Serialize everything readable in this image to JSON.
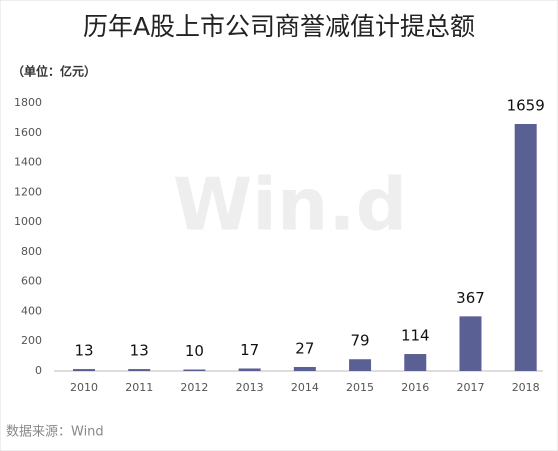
{
  "chart_data": {
    "type": "bar",
    "title": "历年A股上市公司商誉减值计提总额",
    "unit": "（单位：亿元）",
    "categories": [
      "2010",
      "2011",
      "2012",
      "2013",
      "2014",
      "2015",
      "2016",
      "2017",
      "2018"
    ],
    "values": [
      13,
      13,
      10,
      17,
      27,
      79,
      114,
      367,
      1659
    ],
    "color": "#5b6094",
    "ylim": [
      0,
      1800
    ],
    "yticks": [
      0,
      200,
      400,
      600,
      800,
      1000,
      1200,
      1400,
      1600,
      1800
    ],
    "grid": false,
    "source": "数据来源：Wind",
    "watermark": "Win.d"
  }
}
